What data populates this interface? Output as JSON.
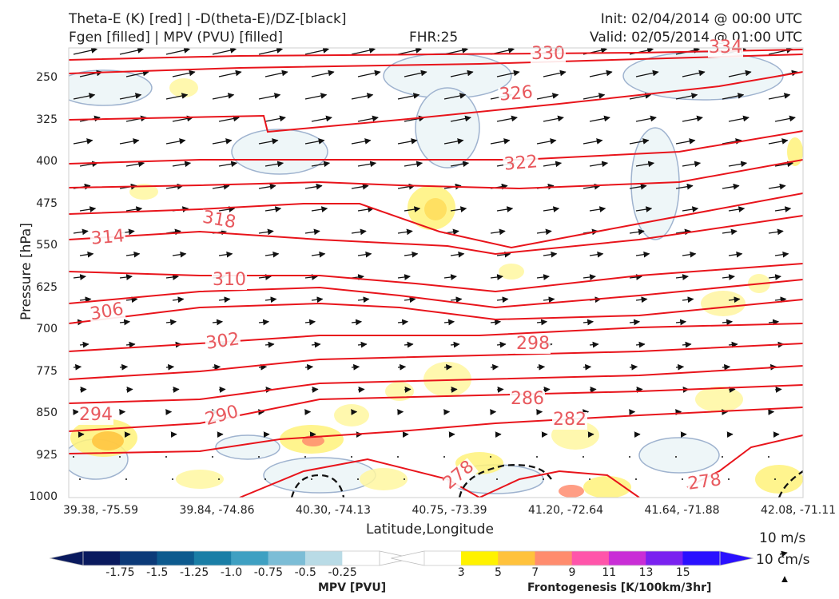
{
  "header": {
    "title_line1": "Theta-E (K) [red] | -D(theta-E)/DZ-[black]",
    "title_line2": "Fgen [filled] | MPV (PVU) [filled]",
    "fhr": "FHR:25",
    "init": "Init: 02/04/2014 @ 00:00 UTC",
    "valid": "Valid: 02/05/2014 @ 01:00 UTC"
  },
  "chart_data": {
    "type": "contour-cross-section",
    "xlabel": "Latitude,Longitude",
    "ylabel": "Pressure [hPa]",
    "y_ticks": [
      "250",
      "325",
      "400",
      "475",
      "550",
      "625",
      "700",
      "775",
      "850",
      "925",
      "1000"
    ],
    "x_ticks": [
      "39.38, -75.59",
      "39.84, -74.86",
      "40.30, -74.13",
      "40.75, -73.39",
      "41.20, -72.64",
      "41.64, -71.88",
      "42.08, -71.11"
    ],
    "ylim": [
      1000,
      195
    ],
    "theta_e_labels": [
      "330",
      "334",
      "326",
      "322",
      "318",
      "314",
      "310",
      "306",
      "302",
      "298",
      "294",
      "290",
      "286",
      "282",
      "278",
      "278"
    ],
    "theta_e_color": "#e8141b",
    "wind_key": [
      "10 m/s",
      "10 cm/s"
    ],
    "mpv_colorbar": {
      "title": "MPV [PVU]",
      "ticks": [
        "-1.75",
        "-1.5",
        "-1.25",
        "-1.0",
        "-0.75",
        "-0.5",
        "-0.25"
      ],
      "colors": [
        "#0a1a5e",
        "#0c3a78",
        "#0d5a8e",
        "#1a7ea6",
        "#3fa0c2",
        "#7cbdd6",
        "#b9dbe6",
        "#ffffff"
      ]
    },
    "fgen_colorbar": {
      "title": "Frontogenesis [K/100km/3hr]",
      "ticks": [
        "3",
        "5",
        "7",
        "9",
        "11",
        "13",
        "15"
      ],
      "colors": [
        "#ffffff",
        "#fff200",
        "#ffc23c",
        "#ff8c6e",
        "#ff55aa",
        "#c92ed6",
        "#7a22f0",
        "#2a10ff"
      ]
    }
  }
}
